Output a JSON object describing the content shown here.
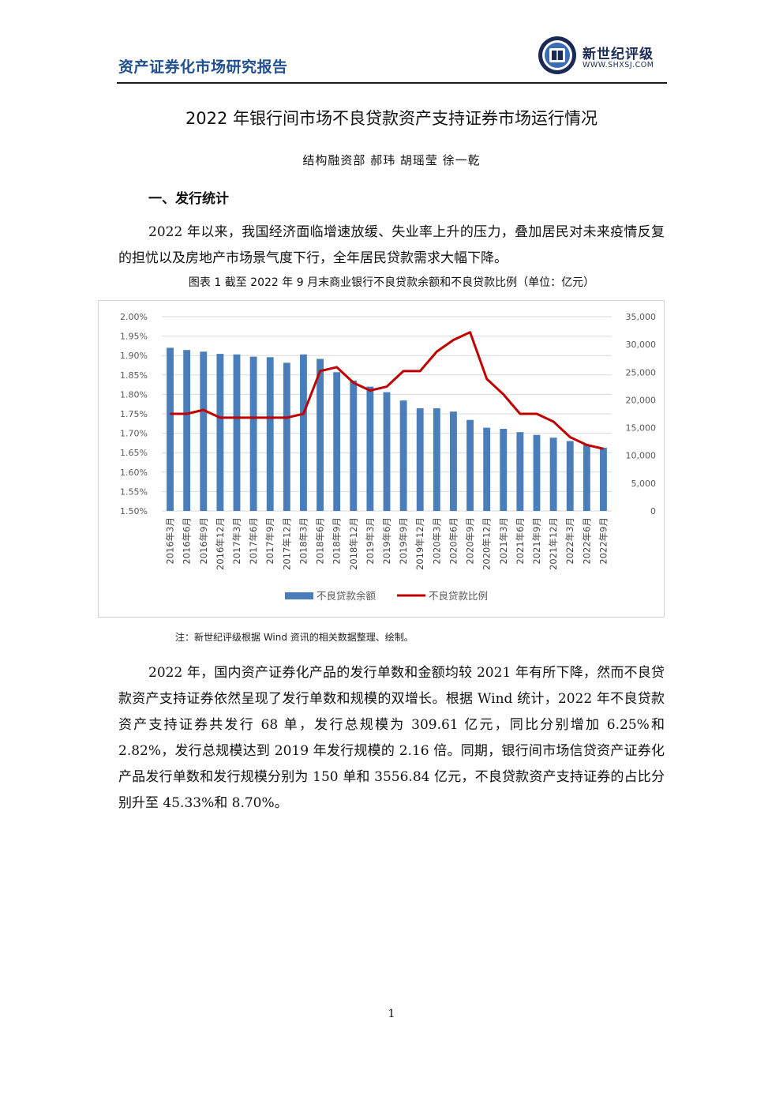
{
  "header": {
    "report_title": "资产证券化市场研究报告",
    "logo_name": "新世纪评级",
    "logo_url": "WWW.SHXSJ.COM"
  },
  "document": {
    "title": "2022 年银行间市场不良贷款资产支持证券市场运行情况",
    "authors": "结构融资部 郝玮 胡瑶莹 徐一乾",
    "section1": "一、发行统计",
    "para1": "2022 年以来，我国经济面临增速放缓、失业率上升的压力，叠加居民对未来疫情反复的担忧以及房地产市场景气度下行，全年居民贷款需求大幅下降。",
    "figure_caption": "图表 1 截至 2022 年 9 月末商业银行不良贷款余额和不良贷款比例（单位：亿元）",
    "note": "注：新世纪评级根据 Wind 资讯的相关数据整理、绘制。",
    "para2": "2022 年，国内资产证券化产品的发行单数和金额均较 2021 年有所下降，然而不良贷款资产支持证券依然呈现了发行单数和规模的双增长。根据 Wind 统计，2022 年不良贷款资产支持证券共发行 68 单，发行总规模为 309.61 亿元，同比分别增加 6.25%和 2.82%，发行总规模达到 2019 年发行规模的 2.16 倍。同期，银行间市场信贷资产证券化产品发行单数和发行规模分别为 150 单和 3556.84 亿元，不良贷款资产支持证券的占比分别升至 45.33%和 8.70%。",
    "page_number": "1"
  },
  "chart_data": {
    "type": "bar+line",
    "categories": [
      "2016年3月",
      "2016年6月",
      "2016年9月",
      "2016年12月",
      "2017年3月",
      "2017年6月",
      "2017年9月",
      "2017年12月",
      "2018年3月",
      "2018年6月",
      "2018年9月",
      "2018年12月",
      "2019年3月",
      "2019年6月",
      "2019年9月",
      "2019年12月",
      "2020年3月",
      "2020年6月",
      "2020年9月",
      "2020年12月",
      "2021年3月",
      "2021年6月",
      "2021年9月",
      "2021年12月",
      "2022年3月",
      "2022年6月",
      "2022年9月"
    ],
    "series": [
      {
        "name": "不良贷款余额",
        "type": "bar",
        "axis": "right",
        "color": "#4a7ebb",
        "values": [
          29400,
          29000,
          28700,
          28300,
          28200,
          27800,
          27700,
          26700,
          28200,
          27400,
          25000,
          23500,
          22400,
          21400,
          19900,
          18500,
          18500,
          17900,
          16400,
          15000,
          14800,
          14200,
          13700,
          13200,
          12600,
          11900,
          11400
        ]
      },
      {
        "name": "不良贷款比例",
        "type": "line",
        "axis": "left",
        "color": "#c00000",
        "values": [
          1.75,
          1.75,
          1.76,
          1.74,
          1.74,
          1.74,
          1.74,
          1.74,
          1.75,
          1.86,
          1.87,
          1.83,
          1.81,
          1.82,
          1.86,
          1.86,
          1.91,
          1.94,
          1.96,
          1.84,
          1.8,
          1.75,
          1.75,
          1.73,
          1.69,
          1.67,
          1.66
        ]
      }
    ],
    "y_left": {
      "min": 1.5,
      "max": 2.0,
      "ticks": [
        "1.50%",
        "1.55%",
        "1.60%",
        "1.65%",
        "1.70%",
        "1.75%",
        "1.80%",
        "1.85%",
        "1.90%",
        "1.95%",
        "2.00%"
      ]
    },
    "y_right": {
      "min": 0,
      "max": 35000,
      "ticks": [
        "0",
        "5,000",
        "10,000",
        "15,000",
        "20,000",
        "25,000",
        "30,000",
        "35,000"
      ]
    },
    "grid": true,
    "legend_placement": "bottom"
  }
}
